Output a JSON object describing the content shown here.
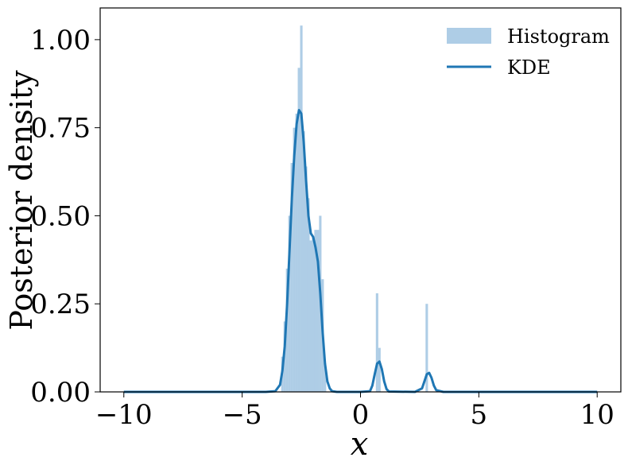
{
  "chart_data": {
    "type": "histogram+line",
    "xlabel": "x",
    "ylabel": "Posterior density",
    "xlim": [
      -11,
      11
    ],
    "ylim": [
      0,
      1.09
    ],
    "xticks": [
      -10,
      -5,
      0,
      5,
      10
    ],
    "xtick_labels": [
      "−10",
      "−5",
      "0",
      "5",
      "10"
    ],
    "yticks": [
      0.0,
      0.25,
      0.5,
      0.75,
      1.0
    ],
    "ytick_labels": [
      "0.00",
      "0.25",
      "0.50",
      "0.75",
      "1.00"
    ],
    "grid": false,
    "legend": {
      "position": "top-right",
      "entries": [
        "Histogram",
        "KDE"
      ]
    },
    "colors": {
      "histogram": "#aecde6",
      "kde": "#1f77b4",
      "frame": "#000000"
    },
    "histogram": {
      "name": "Histogram",
      "bin_width": 0.104,
      "bins": [
        {
          "x": -3.3,
          "density": 0.1
        },
        {
          "x": -3.2,
          "density": 0.2
        },
        {
          "x": -3.1,
          "density": 0.35
        },
        {
          "x": -3.0,
          "density": 0.5
        },
        {
          "x": -2.9,
          "density": 0.65
        },
        {
          "x": -2.8,
          "density": 0.75
        },
        {
          "x": -2.7,
          "density": 0.79
        },
        {
          "x": -2.6,
          "density": 0.92
        },
        {
          "x": -2.5,
          "density": 1.04
        },
        {
          "x": -2.4,
          "density": 0.74
        },
        {
          "x": -2.3,
          "density": 0.64
        },
        {
          "x": -2.2,
          "density": 0.55
        },
        {
          "x": -2.1,
          "density": 0.43
        },
        {
          "x": -2.0,
          "density": 0.44
        },
        {
          "x": -1.9,
          "density": 0.46
        },
        {
          "x": -1.8,
          "density": 0.46
        },
        {
          "x": -1.7,
          "density": 0.5
        },
        {
          "x": -1.6,
          "density": 0.32
        },
        {
          "x": -1.5,
          "density": 0.08
        },
        {
          "x": 0.7,
          "density": 0.28
        },
        {
          "x": 0.8,
          "density": 0.125
        },
        {
          "x": 2.8,
          "density": 0.25
        }
      ]
    },
    "kde": {
      "name": "KDE",
      "x": [
        -10.0,
        -5.0,
        -4.0,
        -3.6,
        -3.4,
        -3.3,
        -3.2,
        -3.1,
        -3.0,
        -2.9,
        -2.8,
        -2.7,
        -2.6,
        -2.5,
        -2.4,
        -2.3,
        -2.2,
        -2.1,
        -2.0,
        -1.9,
        -1.8,
        -1.7,
        -1.6,
        -1.5,
        -1.4,
        -1.3,
        -1.2,
        -1.0,
        0.0,
        0.4,
        0.5,
        0.6,
        0.7,
        0.8,
        0.9,
        1.0,
        1.1,
        1.2,
        2.3,
        2.6,
        2.7,
        2.8,
        2.9,
        3.0,
        3.1,
        3.2,
        3.5,
        5.0,
        10.0
      ],
      "y": [
        0.0,
        0.0,
        0.0,
        0.002,
        0.02,
        0.06,
        0.13,
        0.25,
        0.4,
        0.55,
        0.67,
        0.76,
        0.8,
        0.79,
        0.71,
        0.6,
        0.5,
        0.45,
        0.44,
        0.41,
        0.37,
        0.28,
        0.17,
        0.08,
        0.03,
        0.01,
        0.002,
        0.0,
        0.0,
        0.002,
        0.018,
        0.05,
        0.08,
        0.086,
        0.065,
        0.03,
        0.008,
        0.001,
        0.0,
        0.01,
        0.03,
        0.05,
        0.054,
        0.04,
        0.018,
        0.005,
        0.0,
        0.0,
        0.0
      ]
    }
  }
}
